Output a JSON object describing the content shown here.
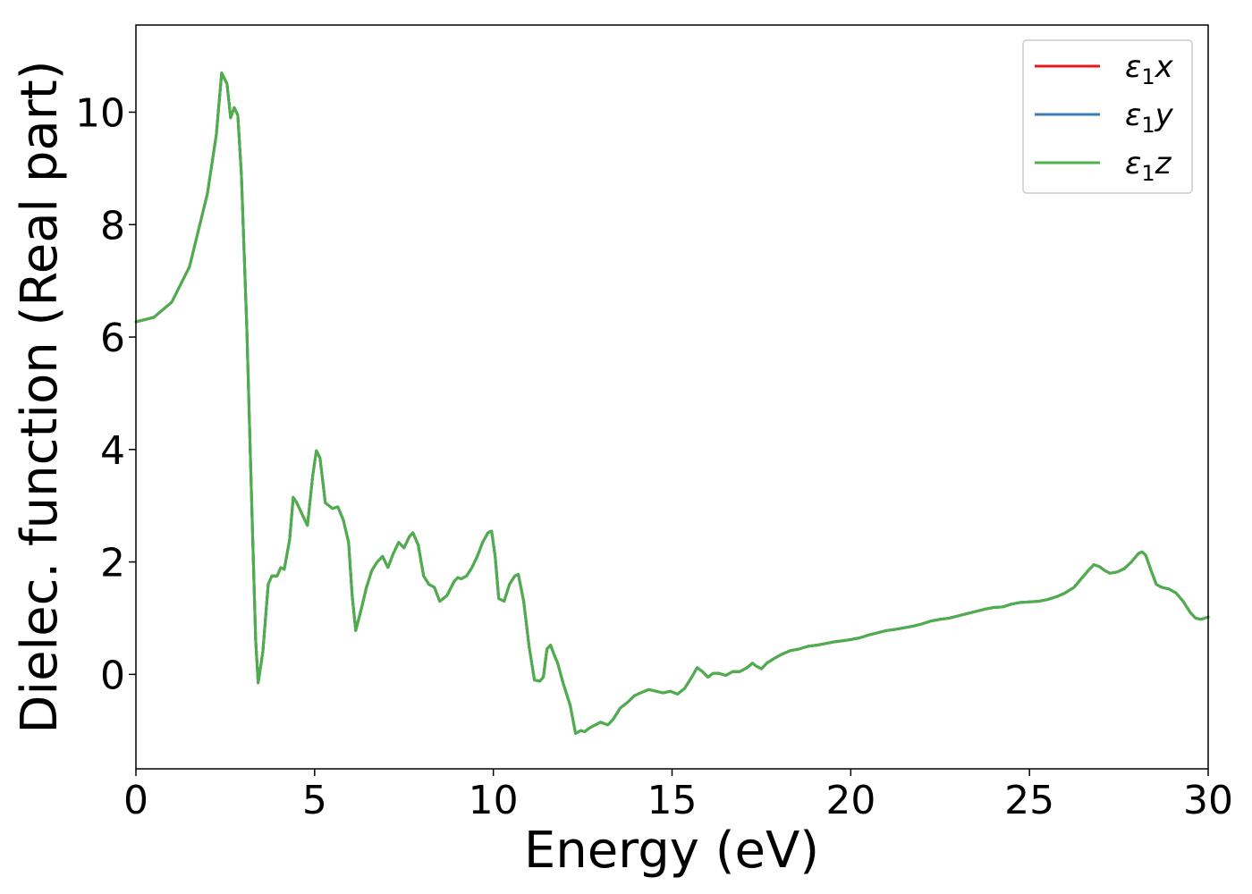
{
  "chart_data": {
    "type": "line",
    "xlabel": "Energy (eV)",
    "ylabel": "Dielec. function (Real part)",
    "xlim": [
      0,
      30
    ],
    "ylim": [
      -1.68,
      11.55
    ],
    "x_ticks": [
      0,
      5,
      10,
      15,
      20,
      25,
      30
    ],
    "y_ticks": [
      0,
      2,
      4,
      6,
      8,
      10
    ],
    "grid": false,
    "legend_position": "top-right",
    "series": [
      {
        "name": "ε₁x",
        "label_base": "ε",
        "label_sub": "1",
        "label_suffix": "x",
        "color": "#e41a1c",
        "x": [
          0,
          0.5,
          1.0,
          1.5,
          2.0,
          2.25,
          2.4,
          2.55,
          2.65,
          2.75,
          2.85,
          2.95,
          3.1,
          3.25,
          3.35,
          3.42,
          3.55,
          3.7,
          3.8,
          3.95,
          4.05,
          4.15,
          4.3,
          4.4,
          4.5,
          4.65,
          4.8,
          4.95,
          5.05,
          5.15,
          5.3,
          5.5,
          5.65,
          5.8,
          5.95,
          6.05,
          6.15,
          6.3,
          6.45,
          6.6,
          6.75,
          6.9,
          7.05,
          7.2,
          7.35,
          7.5,
          7.65,
          7.75,
          7.9,
          8.05,
          8.2,
          8.35,
          8.5,
          8.7,
          8.9,
          9.0,
          9.1,
          9.25,
          9.4,
          9.55,
          9.7,
          9.85,
          9.95,
          10.05,
          10.15,
          10.3,
          10.45,
          10.6,
          10.7,
          10.85,
          11.0,
          11.15,
          11.3,
          11.4,
          11.5,
          11.6,
          11.7,
          11.8,
          11.95,
          12.05,
          12.15,
          12.3,
          12.45,
          12.55,
          12.7,
          12.85,
          13.0,
          13.2,
          13.35,
          13.55,
          13.75,
          13.95,
          14.15,
          14.35,
          14.55,
          14.75,
          14.95,
          15.15,
          15.35,
          15.55,
          15.7,
          15.85,
          16.0,
          16.15,
          16.3,
          16.5,
          16.7,
          16.9,
          17.1,
          17.25,
          17.35,
          17.5,
          17.65,
          17.85,
          18.05,
          18.3,
          18.55,
          18.8,
          19.05,
          19.3,
          19.55,
          19.8,
          20.0,
          20.25,
          20.5,
          20.75,
          21.0,
          21.25,
          21.5,
          21.75,
          22.0,
          22.25,
          22.5,
          22.75,
          23.0,
          23.25,
          23.5,
          23.75,
          24.0,
          24.25,
          24.5,
          24.75,
          25.0,
          25.25,
          25.5,
          25.75,
          26.0,
          26.25,
          26.45,
          26.65,
          26.8,
          26.95,
          27.1,
          27.25,
          27.45,
          27.65,
          27.85,
          28.05,
          28.15,
          28.25,
          28.4,
          28.55,
          28.7,
          28.9,
          29.1,
          29.3,
          29.5,
          29.65,
          29.8,
          29.9,
          30.0
        ],
        "y": [
          6.27,
          6.35,
          6.62,
          7.25,
          8.55,
          9.6,
          10.7,
          10.5,
          9.9,
          10.08,
          9.95,
          8.9,
          6.2,
          2.8,
          0.6,
          -0.15,
          0.4,
          1.6,
          1.75,
          1.75,
          1.9,
          1.87,
          2.4,
          3.15,
          3.05,
          2.85,
          2.65,
          3.55,
          3.98,
          3.85,
          3.05,
          2.95,
          2.98,
          2.75,
          2.35,
          1.4,
          0.78,
          1.15,
          1.55,
          1.85,
          2.0,
          2.1,
          1.9,
          2.15,
          2.35,
          2.25,
          2.45,
          2.52,
          2.3,
          1.75,
          1.6,
          1.55,
          1.3,
          1.4,
          1.65,
          1.72,
          1.7,
          1.75,
          1.9,
          2.1,
          2.35,
          2.52,
          2.55,
          2.1,
          1.35,
          1.3,
          1.6,
          1.75,
          1.78,
          1.3,
          0.5,
          -0.1,
          -0.12,
          -0.05,
          0.45,
          0.52,
          0.35,
          0.2,
          -0.15,
          -0.35,
          -0.55,
          -1.05,
          -1.0,
          -1.02,
          -0.95,
          -0.9,
          -0.85,
          -0.9,
          -0.8,
          -0.6,
          -0.5,
          -0.38,
          -0.32,
          -0.27,
          -0.3,
          -0.33,
          -0.3,
          -0.35,
          -0.25,
          -0.05,
          0.12,
          0.05,
          -0.05,
          0.02,
          0.02,
          -0.02,
          0.05,
          0.05,
          0.12,
          0.2,
          0.15,
          0.1,
          0.2,
          0.28,
          0.35,
          0.42,
          0.45,
          0.5,
          0.52,
          0.55,
          0.58,
          0.6,
          0.62,
          0.65,
          0.7,
          0.74,
          0.78,
          0.8,
          0.83,
          0.86,
          0.9,
          0.95,
          0.98,
          1.0,
          1.04,
          1.08,
          1.12,
          1.16,
          1.19,
          1.2,
          1.25,
          1.28,
          1.29,
          1.3,
          1.33,
          1.38,
          1.45,
          1.55,
          1.7,
          1.85,
          1.95,
          1.92,
          1.85,
          1.8,
          1.82,
          1.88,
          2.0,
          2.15,
          2.18,
          2.12,
          1.85,
          1.6,
          1.55,
          1.52,
          1.45,
          1.3,
          1.1,
          1.0,
          0.98,
          1.0,
          1.02
        ]
      },
      {
        "name": "ε₁y",
        "label_base": "ε",
        "label_sub": "1",
        "label_suffix": "y",
        "color": "#377eb8",
        "same_as": "ε₁x"
      },
      {
        "name": "ε₁z",
        "label_base": "ε",
        "label_sub": "1",
        "label_suffix": "z",
        "color": "#4daf4a",
        "same_as": "ε₁x"
      }
    ]
  }
}
